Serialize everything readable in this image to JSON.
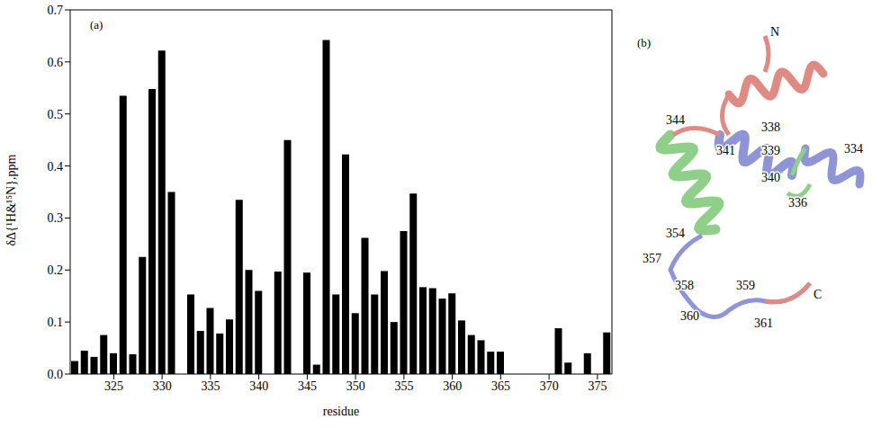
{
  "chart_data": {
    "type": "bar",
    "panel_label": "(a)",
    "x_label": "residue",
    "y_label": "δΔ{¹H&¹⁵N},ppm",
    "color": "#000000",
    "x": [
      321,
      322,
      323,
      324,
      325,
      326,
      327,
      328,
      329,
      330,
      331,
      332,
      333,
      334,
      335,
      336,
      337,
      338,
      339,
      340,
      341,
      342,
      343,
      344,
      345,
      346,
      347,
      348,
      349,
      350,
      351,
      352,
      353,
      354,
      355,
      356,
      357,
      358,
      359,
      360,
      361,
      362,
      363,
      364,
      365,
      366,
      367,
      368,
      369,
      370,
      371,
      372,
      373,
      374,
      375,
      376
    ],
    "values": [
      0.025,
      0.045,
      0.033,
      0.075,
      0.04,
      0.535,
      0.038,
      0.225,
      0.548,
      0.622,
      0.35,
      null,
      0.153,
      0.083,
      0.127,
      0.078,
      0.105,
      0.335,
      0.2,
      0.16,
      null,
      0.197,
      0.45,
      null,
      0.195,
      0.018,
      0.642,
      0.153,
      0.422,
      0.117,
      0.262,
      0.153,
      0.198,
      0.1,
      0.275,
      0.347,
      0.167,
      0.165,
      0.145,
      0.155,
      0.103,
      0.075,
      0.065,
      0.043,
      0.043,
      null,
      null,
      null,
      null,
      null,
      0.088,
      0.022,
      null,
      0.04,
      null,
      0.08
    ],
    "xlim": [
      320.5,
      376.5
    ],
    "xticks": [
      325,
      330,
      335,
      340,
      345,
      350,
      355,
      360,
      365,
      370,
      375
    ],
    "ylim": [
      0,
      0.7
    ],
    "yticks": [
      {
        "value": 0,
        "label": "0.0"
      },
      0.1,
      0.2,
      0.3,
      0.4,
      0.5,
      0.6,
      0.7
    ],
    "grid": false
  },
  "panel_b": {
    "label": "(b)",
    "texts": [
      "N",
      "344",
      "341",
      "338",
      "339",
      "340",
      "334",
      "336",
      "354",
      "357",
      "358",
      "359",
      "360",
      "361",
      "C"
    ]
  }
}
